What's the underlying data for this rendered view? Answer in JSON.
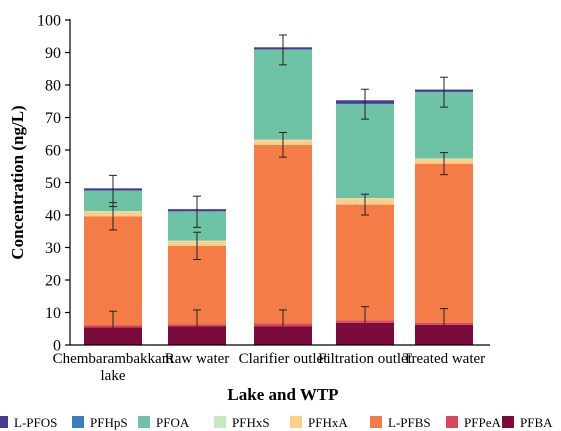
{
  "chart_data": {
    "type": "bar",
    "stacked": true,
    "xlabel": "Lake and WTP",
    "ylabel": "Concentration (ng/L)",
    "ylim": [
      0,
      100
    ],
    "yticks": [
      0,
      10,
      20,
      30,
      40,
      50,
      60,
      70,
      80,
      90,
      100
    ],
    "grid": false,
    "legend_position": "bottom",
    "categories": [
      [
        "Chembarambakkam",
        "lake"
      ],
      [
        "Raw water"
      ],
      [
        "Clarifier outlet"
      ],
      [
        "Filtration outlet"
      ],
      [
        "Treated water"
      ]
    ],
    "series": [
      {
        "name": "PFBA",
        "color": "#7b0b3d",
        "values": [
          5.4,
          5.8,
          5.8,
          6.8,
          6.2
        ]
      },
      {
        "name": "PFPeA",
        "color": "#d9475a",
        "values": [
          0.6,
          0.6,
          0.8,
          0.8,
          0.6
        ]
      },
      {
        "name": "L-PFBS",
        "color": "#f47c46",
        "values": [
          33.6,
          24.1,
          55.0,
          35.6,
          49.0
        ]
      },
      {
        "name": "PFHxA",
        "color": "#fbcf8a",
        "values": [
          1.4,
          1.4,
          1.4,
          1.8,
          1.4
        ]
      },
      {
        "name": "PFHxS",
        "color": "#c6e8c2",
        "values": [
          0.2,
          0.2,
          0.2,
          0.2,
          0.2
        ]
      },
      {
        "name": "PFOA",
        "color": "#6fc3a5",
        "values": [
          6.2,
          8.9,
          27.6,
          28.9,
          20.4
        ]
      },
      {
        "name": "PFHpS",
        "color": "#3a7ec0",
        "values": [
          0.2,
          0.2,
          0.2,
          0.2,
          0.2
        ]
      },
      {
        "name": "L-PFOS",
        "color": "#4a3a8f",
        "values": [
          0.6,
          0.6,
          0.6,
          1.0,
          0.6
        ]
      }
    ],
    "error_bars": [
      {
        "series": "PFBA",
        "plus": [
          5.0,
          5.0,
          5.0,
          5.0,
          5.0
        ]
      },
      {
        "series": "L-PFBS",
        "plus": [
          4.2,
          4.2,
          3.8,
          3.2,
          3.4
        ],
        "minus": [
          4.2,
          4.2,
          3.8,
          3.2,
          3.4
        ]
      },
      {
        "series": "PFOA",
        "plus": [
          4.8,
          4.8,
          4.6,
          4.6,
          4.6
        ],
        "minus": [
          4.8,
          4.8,
          4.6,
          4.6,
          4.6
        ]
      }
    ],
    "legend_order": [
      "L-PFOS",
      "PFHpS",
      "PFOA",
      "PFHxS",
      "PFHxA",
      "L-PFBS",
      "PFPeA",
      "PFBA"
    ]
  }
}
